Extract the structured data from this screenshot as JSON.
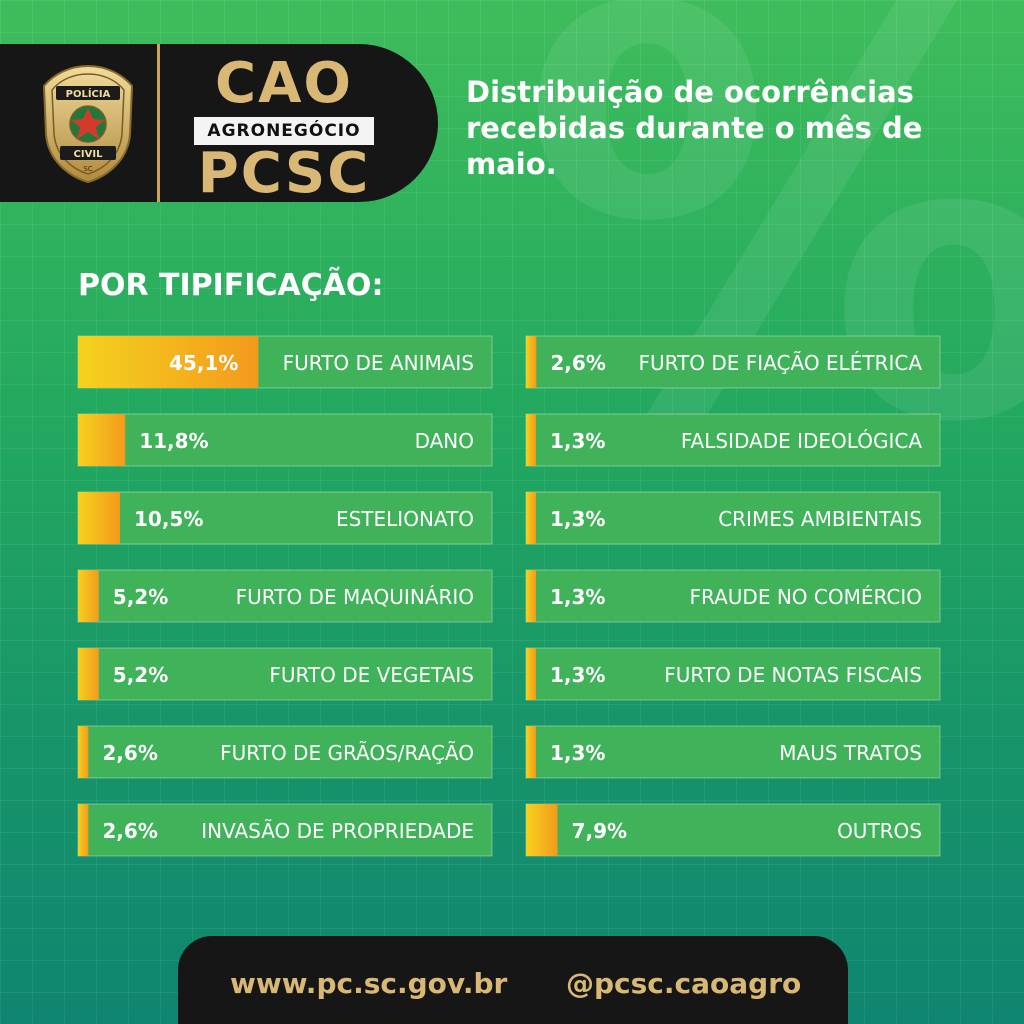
{
  "header": {
    "badge_top": "POLÍCIA",
    "badge_mid": "CIVIL",
    "badge_bottom": "SC",
    "logo_cao": "CAO",
    "logo_agro": "AGRONEGÓCIO",
    "logo_pcsc": "PCSC",
    "headline": "Distribuição de ocorrências recebidas durante o mês de maio."
  },
  "section_title": "POR TIPIFICAÇÃO:",
  "colors": {
    "bar_fill_start": "#f5d21e",
    "bar_fill_end": "#f39a1c",
    "row_background": "#3fb25a",
    "footer_text": "#d8b874"
  },
  "chart_data": {
    "type": "bar",
    "orientation": "horizontal",
    "value_unit": "%",
    "xlim": [
      0,
      100
    ],
    "columns": [
      {
        "rows": [
          {
            "label": "FURTO DE ANIMAIS",
            "value": 45.1,
            "value_label": "45,1%"
          },
          {
            "label": "DANO",
            "value": 11.8,
            "value_label": "11,8%"
          },
          {
            "label": "ESTELIONATO",
            "value": 10.5,
            "value_label": "10,5%"
          },
          {
            "label": "FURTO DE MAQUINÁRIO",
            "value": 5.2,
            "value_label": "5,2%"
          },
          {
            "label": "FURTO DE VEGETAIS",
            "value": 5.2,
            "value_label": "5,2%"
          },
          {
            "label": "FURTO DE GRÃOS/RAÇÃO",
            "value": 2.6,
            "value_label": "2,6%"
          },
          {
            "label": "INVASÃO DE PROPRIEDADE",
            "value": 2.6,
            "value_label": "2,6%"
          }
        ]
      },
      {
        "rows": [
          {
            "label": "FURTO DE FIAÇÃO ELÉTRICA",
            "value": 2.6,
            "value_label": "2,6%"
          },
          {
            "label": "FALSIDADE IDEOLÓGICA",
            "value": 1.3,
            "value_label": "1,3%"
          },
          {
            "label": "CRIMES AMBIENTAIS",
            "value": 1.3,
            "value_label": "1,3%"
          },
          {
            "label": "FRAUDE NO COMÉRCIO",
            "value": 1.3,
            "value_label": "1,3%"
          },
          {
            "label": "FURTO DE NOTAS FISCAIS",
            "value": 1.3,
            "value_label": "1,3%"
          },
          {
            "label": "MAUS TRATOS",
            "value": 1.3,
            "value_label": "1,3%"
          },
          {
            "label": "OUTROS",
            "value": 7.9,
            "value_label": "7,9%"
          }
        ]
      }
    ]
  },
  "footer": {
    "website": "www.pc.sc.gov.br",
    "social": "@pcsc.caoagro"
  }
}
